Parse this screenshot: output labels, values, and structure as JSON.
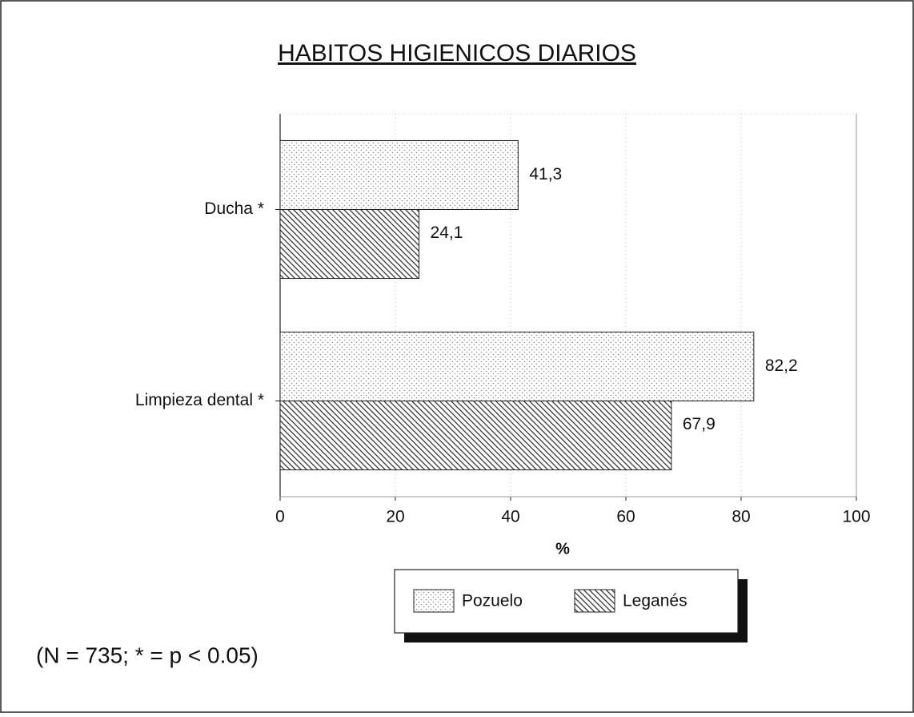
{
  "chart_data": {
    "type": "bar",
    "orientation": "horizontal",
    "title": "HABITOS HIGIENICOS DIARIOS",
    "categories": [
      "Ducha *",
      "Limpieza dental *"
    ],
    "series": [
      {
        "name": "Pozuelo",
        "color": "#8a8a8a",
        "values": [
          41.3,
          82.2
        ],
        "value_labels": [
          "41,3",
          "82,2"
        ]
      },
      {
        "name": "Leganés",
        "color": "#333333",
        "values": [
          24.1,
          67.9
        ],
        "value_labels": [
          "24,1",
          "67,9"
        ]
      }
    ],
    "x_label": "%",
    "xlim": [
      0,
      100
    ],
    "xticks": [
      0,
      20,
      40,
      60,
      80,
      100
    ],
    "grid": true,
    "legend": "bottom",
    "annotation": "(N = 735; * = p < 0.05)"
  }
}
